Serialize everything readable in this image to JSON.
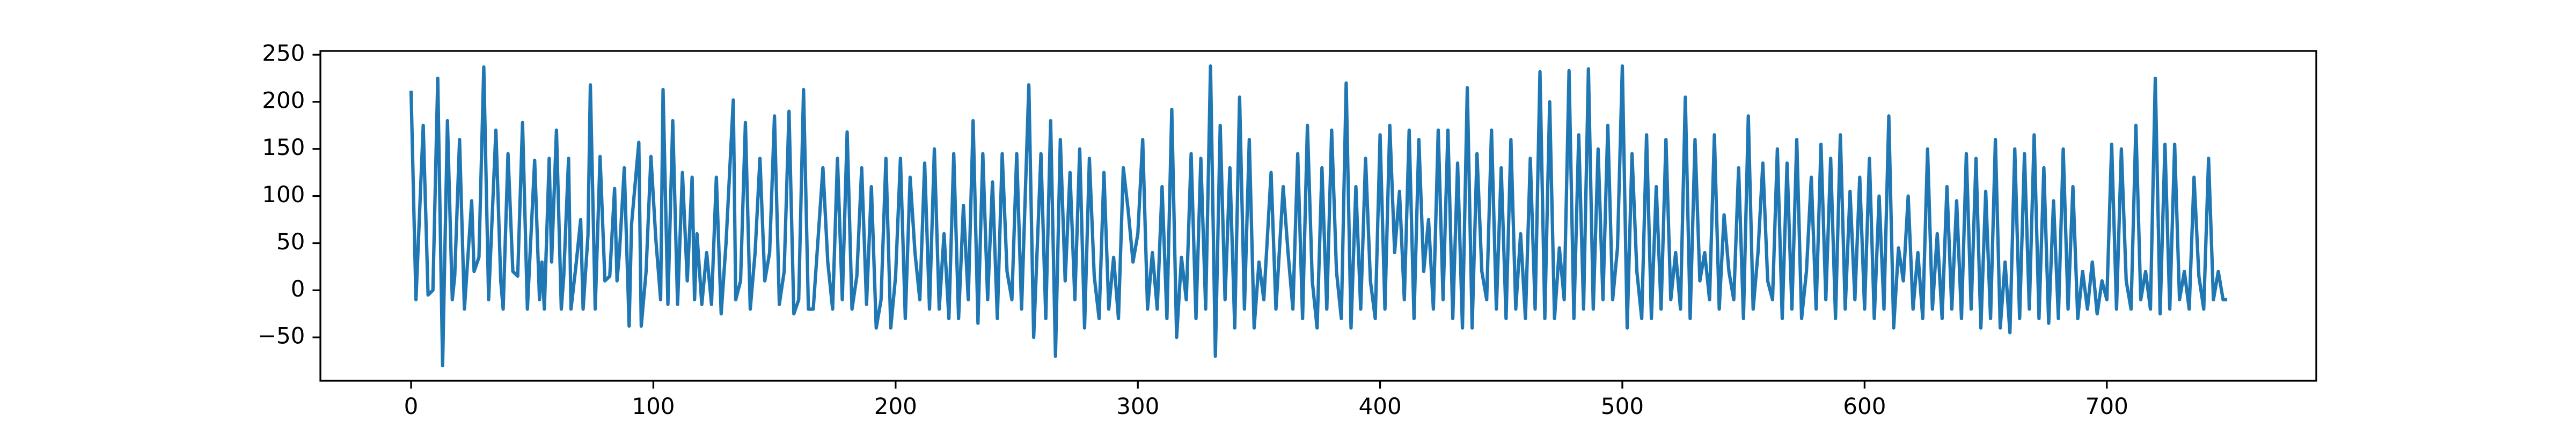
{
  "chart_data": {
    "type": "line",
    "color": "#1f77b4",
    "x": [
      0,
      2,
      5,
      7,
      9,
      11,
      13,
      15,
      17,
      18,
      20,
      22,
      25,
      26,
      28,
      30,
      32,
      35,
      37,
      38,
      40,
      42,
      44,
      46,
      48,
      51,
      53,
      54,
      55,
      57,
      58,
      60,
      62,
      63,
      65,
      66,
      68,
      70,
      71,
      73,
      74,
      76,
      78,
      80,
      82,
      84,
      85,
      86,
      88,
      90,
      91,
      94,
      95,
      97,
      99,
      101,
      103,
      104,
      106,
      108,
      110,
      112,
      114,
      116,
      117,
      118,
      120,
      122,
      124,
      126,
      128,
      130,
      133,
      134,
      136,
      138,
      140,
      142,
      144,
      146,
      148,
      150,
      152,
      154,
      156,
      158,
      160,
      162,
      164,
      166,
      170,
      172,
      174,
      176,
      178,
      180,
      182,
      184,
      186,
      188,
      190,
      192,
      194,
      196,
      198,
      200,
      202,
      204,
      206,
      208,
      210,
      212,
      214,
      216,
      218,
      220,
      222,
      224,
      226,
      228,
      230,
      232,
      234,
      236,
      238,
      240,
      242,
      244,
      246,
      248,
      250,
      252,
      255,
      257,
      260,
      262,
      264,
      266,
      268,
      270,
      272,
      274,
      276,
      278,
      280,
      282,
      284,
      286,
      288,
      290,
      292,
      294,
      296,
      298,
      300,
      302,
      304,
      306,
      308,
      310,
      312,
      314,
      316,
      318,
      320,
      322,
      324,
      326,
      328,
      330,
      332,
      334,
      336,
      338,
      340,
      342,
      344,
      346,
      348,
      350,
      352,
      355,
      357,
      360,
      362,
      364,
      366,
      368,
      370,
      372,
      374,
      376,
      378,
      380,
      382,
      384,
      386,
      388,
      390,
      392,
      394,
      396,
      398,
      400,
      402,
      404,
      406,
      408,
      410,
      412,
      414,
      416,
      418,
      420,
      422,
      424,
      426,
      428,
      430,
      432,
      434,
      436,
      438,
      440,
      442,
      444,
      446,
      448,
      450,
      452,
      454,
      456,
      458,
      460,
      462,
      464,
      466,
      468,
      470,
      472,
      474,
      476,
      478,
      480,
      482,
      484,
      486,
      488,
      490,
      492,
      494,
      496,
      498,
      500,
      502,
      504,
      506,
      508,
      510,
      512,
      514,
      516,
      518,
      520,
      522,
      524,
      526,
      528,
      530,
      532,
      534,
      536,
      538,
      540,
      542,
      544,
      546,
      548,
      550,
      552,
      554,
      556,
      558,
      560,
      562,
      564,
      566,
      568,
      570,
      572,
      574,
      576,
      578,
      580,
      582,
      584,
      586,
      588,
      590,
      592,
      594,
      596,
      598,
      600,
      602,
      604,
      606,
      608,
      610,
      612,
      614,
      616,
      618,
      620,
      622,
      624,
      626,
      628,
      630,
      632,
      634,
      636,
      638,
      640,
      642,
      644,
      646,
      648,
      650,
      652,
      654,
      656,
      658,
      660,
      662,
      664,
      666,
      668,
      670,
      672,
      674,
      676,
      678,
      680,
      682,
      684,
      686,
      688,
      690,
      692,
      694,
      696,
      698,
      700,
      702,
      704,
      706,
      708,
      710,
      712,
      714,
      716,
      718,
      720,
      722,
      724,
      726,
      728,
      730,
      732,
      734,
      736,
      738,
      740,
      742,
      744,
      746,
      748,
      749
    ],
    "values": [
      210,
      -10,
      175,
      -5,
      0,
      225,
      -80,
      180,
      -10,
      15,
      160,
      -20,
      95,
      20,
      35,
      237,
      -10,
      170,
      10,
      -20,
      145,
      20,
      15,
      178,
      -20,
      138,
      -10,
      30,
      -20,
      140,
      30,
      170,
      -20,
      15,
      140,
      -20,
      25,
      75,
      -20,
      58,
      218,
      -20,
      142,
      10,
      15,
      108,
      10,
      40,
      130,
      -38,
      70,
      157,
      -38,
      20,
      142,
      55,
      -10,
      213,
      -15,
      180,
      -15,
      125,
      10,
      120,
      -10,
      60,
      -15,
      40,
      -15,
      120,
      -25,
      50,
      202,
      -10,
      10,
      178,
      -20,
      40,
      140,
      10,
      40,
      185,
      -15,
      20,
      190,
      -25,
      -10,
      213,
      -20,
      -20,
      130,
      30,
      -20,
      140,
      -10,
      168,
      -20,
      15,
      130,
      -15,
      110,
      -40,
      -10,
      140,
      -40,
      15,
      140,
      -30,
      120,
      40,
      -10,
      135,
      -20,
      150,
      -20,
      60,
      -30,
      145,
      -30,
      90,
      -10,
      180,
      -35,
      145,
      -10,
      115,
      -30,
      145,
      20,
      -10,
      145,
      -20,
      218,
      -50,
      145,
      -30,
      180,
      -70,
      160,
      10,
      125,
      -10,
      150,
      -40,
      140,
      15,
      -30,
      125,
      -20,
      35,
      -30,
      130,
      85,
      30,
      60,
      160,
      -20,
      40,
      -20,
      110,
      -30,
      192,
      -50,
      35,
      -10,
      145,
      -30,
      140,
      -20,
      238,
      -70,
      175,
      -10,
      130,
      -40,
      205,
      -20,
      160,
      -40,
      30,
      -10,
      125,
      -20,
      110,
      40,
      -20,
      145,
      -30,
      175,
      10,
      -40,
      130,
      -20,
      170,
      20,
      -30,
      220,
      -40,
      110,
      -20,
      140,
      10,
      -30,
      165,
      -20,
      175,
      40,
      105,
      -10,
      170,
      -30,
      160,
      20,
      75,
      -20,
      170,
      -10,
      170,
      -30,
      135,
      -40,
      215,
      -40,
      145,
      20,
      -10,
      170,
      -20,
      130,
      -30,
      160,
      -20,
      60,
      -30,
      140,
      -20,
      232,
      -30,
      200,
      -30,
      45,
      -10,
      233,
      -30,
      165,
      -20,
      235,
      -20,
      150,
      -10,
      175,
      -10,
      45,
      238,
      -40,
      145,
      20,
      -30,
      165,
      -30,
      110,
      -20,
      160,
      -10,
      40,
      -20,
      205,
      -30,
      160,
      10,
      40,
      -10,
      165,
      -20,
      80,
      20,
      -10,
      130,
      -30,
      185,
      -20,
      40,
      135,
      10,
      -10,
      150,
      -30,
      135,
      -20,
      160,
      -30,
      20,
      120,
      -20,
      155,
      -10,
      140,
      -30,
      165,
      -20,
      105,
      -10,
      120,
      -20,
      140,
      -30,
      100,
      -20,
      185,
      -40,
      45,
      10,
      100,
      -20,
      40,
      -30,
      150,
      -20,
      60,
      -30,
      110,
      -20,
      95,
      -30,
      145,
      -20,
      140,
      -40,
      105,
      -30,
      160,
      -40,
      30,
      -45,
      150,
      -30,
      145,
      -20,
      165,
      -30,
      130,
      -35,
      95,
      -30,
      150,
      -20,
      110,
      -30,
      20,
      -20,
      30,
      -25,
      10,
      -10,
      155,
      -20,
      150,
      10,
      -20,
      175,
      -10,
      20,
      -20,
      225,
      -25,
      155,
      -20,
      155,
      -10,
      20,
      -20,
      120,
      15,
      -20,
      140,
      -10,
      20,
      -10,
      -10
    ],
    "xlim": [
      -37.45,
      786.45
    ],
    "ylim": [
      -96,
      254
    ],
    "xticks": [
      0,
      100,
      200,
      300,
      400,
      500,
      600,
      700
    ],
    "yticks": [
      {
        "value": -50,
        "label": "−50"
      },
      0,
      50,
      100,
      150,
      200,
      250
    ]
  }
}
